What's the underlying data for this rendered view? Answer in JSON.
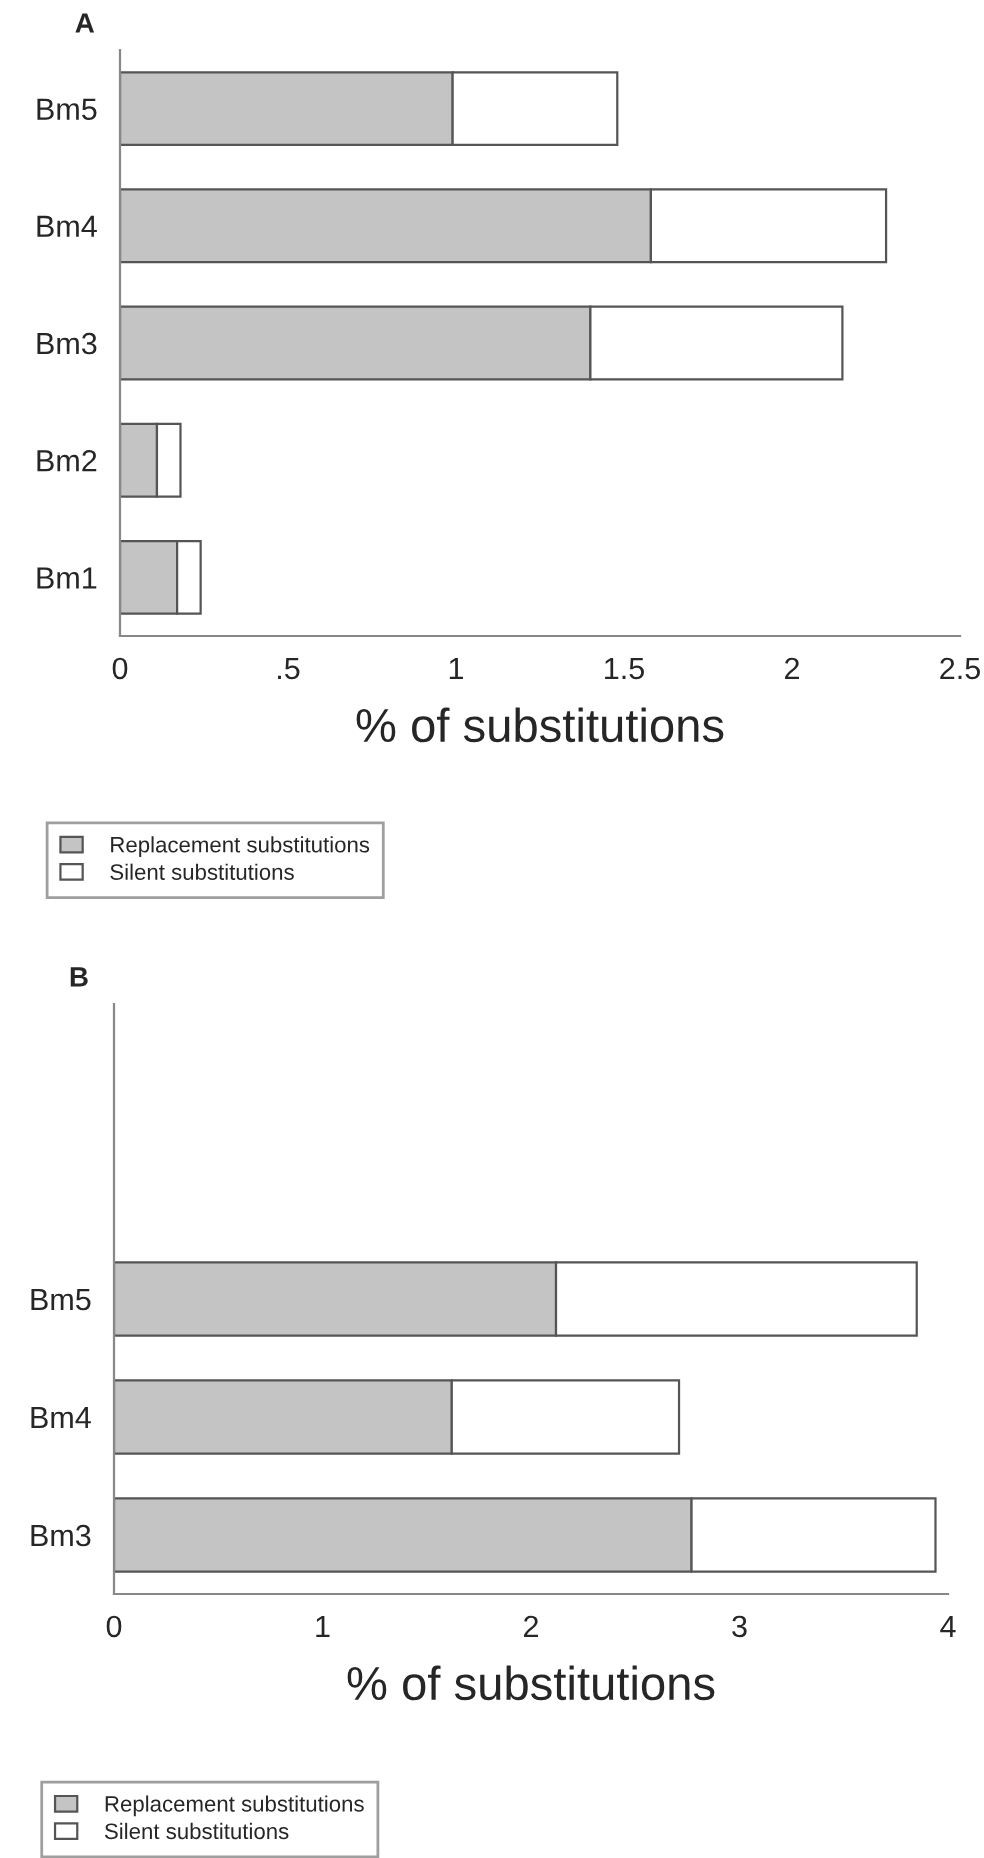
{
  "chart_data": [
    {
      "type": "bar",
      "title": "A",
      "orientation": "horizontal",
      "stacked": true,
      "categories": [
        "Bm5",
        "Bm4",
        "Bm3",
        "Bm2",
        "Bm1"
      ],
      "xlabel": "% of substitutions",
      "xlim": [
        0,
        2.5
      ],
      "xticks": [
        0,
        {
          "value": 0.5,
          "label": ".5"
        },
        1,
        1.5,
        2,
        2.5
      ],
      "legend": "bottom",
      "grid": false,
      "series": [
        {
          "name": "Replacement substitutions",
          "color": "#c4c4c4",
          "values": [
            0.99,
            1.58,
            1.4,
            0.11,
            0.17
          ]
        },
        {
          "name": "Silent substitutions",
          "color": "#ffffff",
          "values": [
            0.49,
            0.7,
            0.75,
            0.07,
            0.07
          ]
        }
      ]
    },
    {
      "type": "bar",
      "title": "B",
      "orientation": "horizontal",
      "stacked": true,
      "categories": [
        null,
        null,
        "Bm5",
        "Bm4",
        "Bm3"
      ],
      "xlabel": "% of substitutions",
      "xlim": [
        0,
        4
      ],
      "xticks": [
        0,
        1,
        2,
        3,
        4
      ],
      "legend": "bottom",
      "grid": false,
      "series": [
        {
          "name": "Replacement substitutions",
          "color": "#c4c4c4",
          "values": [
            null,
            null,
            2.12,
            1.62,
            2.77
          ]
        },
        {
          "name": "Silent substitutions",
          "color": "#ffffff",
          "values": [
            null,
            null,
            1.73,
            1.09,
            1.17
          ]
        }
      ]
    }
  ]
}
